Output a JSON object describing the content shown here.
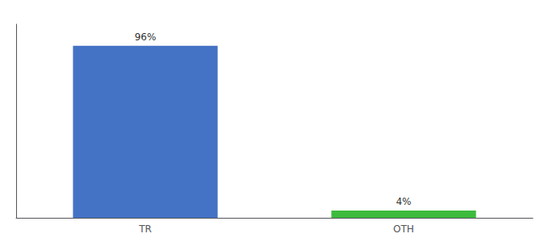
{
  "chart_data": {
    "type": "bar",
    "categories": [
      "TR",
      "OTH"
    ],
    "values": [
      96,
      4
    ],
    "value_labels": [
      "96%",
      "4%"
    ],
    "colors": [
      "#4472c4",
      "#3dbb3d"
    ],
    "ylim": [
      0,
      108
    ],
    "tick_labels": "x",
    "grid": false
  }
}
